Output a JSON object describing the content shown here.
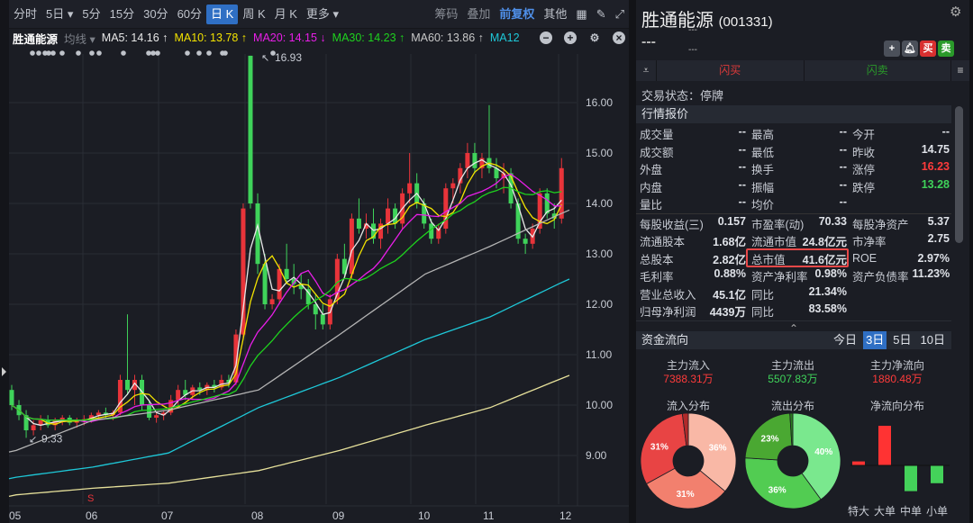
{
  "toolbar": {
    "periods": [
      "分时",
      "5日",
      "5分",
      "15分",
      "30分",
      "60分",
      "日 K",
      "周 K",
      "月 K",
      "更多"
    ],
    "active": "日 K",
    "right": [
      "筹码",
      "叠加",
      "前复权",
      "其他"
    ]
  },
  "ma_bar": {
    "stock": "胜通能源",
    "type": "均线",
    "ma5": "MA5: 14.16 ↑",
    "ma10": "MA10: 13.78 ↑",
    "ma20": "MA20: 14.15 ↓",
    "ma30": "MA30: 14.23 ↑",
    "ma60": "MA60: 13.86 ↑",
    "ma120": "MA12"
  },
  "colors": {
    "up": "#e8343a",
    "down": "#3fd35a",
    "ma5": "#e8e8e8",
    "ma10": "#f2e200",
    "ma20": "#e81ee8",
    "ma30": "#1ed21e",
    "ma60": "#b4b4b4",
    "ma120": "#1ec8d8",
    "ma250": "#e6e09a"
  },
  "chart_data": {
    "type": "candlestick",
    "x_ticks": [
      "05",
      "06",
      "07",
      "08",
      "09",
      "10",
      "11",
      "12"
    ],
    "y_ticks": [
      "16.00",
      "15.00",
      "14.00",
      "13.00",
      "12.00",
      "11.00",
      "10.00",
      "9.00"
    ],
    "ylim": [
      8.0,
      17.0
    ],
    "high_label": "16.93",
    "low_label": "9.33",
    "marker": "S",
    "candles": [
      [
        10.3,
        10.4,
        9.9,
        10.0
      ],
      [
        10.0,
        10.1,
        9.7,
        9.8
      ],
      [
        9.8,
        9.9,
        9.35,
        9.5
      ],
      [
        9.5,
        9.7,
        9.4,
        9.6
      ],
      [
        9.6,
        9.8,
        9.5,
        9.7
      ],
      [
        9.7,
        9.8,
        9.55,
        9.6
      ],
      [
        9.6,
        9.75,
        9.5,
        9.7
      ],
      [
        9.7,
        9.8,
        9.6,
        9.75
      ],
      [
        9.75,
        9.8,
        9.6,
        9.65
      ],
      [
        9.65,
        9.75,
        9.55,
        9.7
      ],
      [
        9.7,
        9.8,
        9.6,
        9.72
      ],
      [
        9.72,
        9.85,
        9.65,
        9.8
      ],
      [
        9.8,
        9.9,
        9.7,
        9.85
      ],
      [
        9.85,
        9.95,
        9.75,
        9.8
      ],
      [
        9.8,
        9.9,
        9.7,
        9.85
      ],
      [
        9.85,
        10.6,
        9.8,
        10.5
      ],
      [
        10.5,
        11.8,
        10.2,
        10.3
      ],
      [
        10.3,
        10.6,
        10.0,
        10.5
      ],
      [
        10.5,
        10.6,
        9.9,
        10.0
      ],
      [
        10.0,
        10.1,
        9.7,
        9.75
      ],
      [
        9.75,
        9.85,
        9.65,
        9.8
      ],
      [
        9.8,
        9.9,
        9.7,
        9.85
      ],
      [
        9.85,
        10.2,
        9.8,
        10.1
      ],
      [
        10.1,
        10.4,
        10.0,
        10.3
      ],
      [
        10.3,
        10.5,
        10.1,
        10.2
      ],
      [
        10.2,
        10.4,
        10.1,
        10.35
      ],
      [
        10.35,
        10.45,
        10.2,
        10.3
      ],
      [
        10.3,
        10.45,
        10.2,
        10.4
      ],
      [
        10.4,
        10.5,
        10.25,
        10.35
      ],
      [
        10.35,
        10.6,
        10.3,
        10.5
      ],
      [
        10.5,
        10.6,
        10.35,
        10.45
      ],
      [
        10.45,
        11.5,
        10.4,
        11.4
      ],
      [
        11.4,
        14.0,
        11.3,
        13.9
      ],
      [
        16.93,
        16.93,
        13.9,
        14.0
      ],
      [
        14.0,
        14.2,
        12.6,
        12.8
      ],
      [
        12.8,
        13.0,
        11.9,
        12.0
      ],
      [
        12.0,
        12.2,
        11.9,
        12.1
      ],
      [
        12.1,
        12.8,
        12.0,
        12.7
      ],
      [
        12.7,
        13.2,
        12.4,
        12.5
      ],
      [
        12.5,
        12.8,
        12.2,
        12.4
      ],
      [
        12.4,
        12.6,
        12.1,
        12.3
      ],
      [
        12.3,
        12.5,
        11.9,
        12.0
      ],
      [
        12.0,
        12.2,
        11.5,
        11.8
      ],
      [
        11.8,
        12.0,
        11.5,
        11.6
      ],
      [
        11.6,
        12.2,
        11.5,
        12.1
      ],
      [
        12.1,
        13.0,
        12.0,
        12.9
      ],
      [
        12.9,
        13.2,
        12.5,
        12.6
      ],
      [
        12.6,
        13.8,
        12.5,
        13.7
      ],
      [
        13.7,
        14.1,
        13.4,
        13.5
      ],
      [
        13.5,
        13.8,
        13.3,
        13.6
      ],
      [
        13.6,
        13.9,
        13.2,
        13.3
      ],
      [
        13.3,
        13.7,
        13.1,
        13.6
      ],
      [
        13.6,
        14.1,
        13.4,
        13.9
      ],
      [
        13.9,
        14.0,
        13.5,
        13.6
      ],
      [
        13.6,
        14.3,
        13.5,
        14.2
      ],
      [
        14.2,
        15.0,
        14.0,
        14.4
      ],
      [
        14.4,
        14.6,
        13.9,
        14.0
      ],
      [
        14.0,
        14.1,
        13.5,
        13.6
      ],
      [
        13.6,
        13.7,
        13.2,
        13.3
      ],
      [
        13.3,
        13.6,
        13.2,
        13.5
      ],
      [
        13.5,
        14.4,
        13.4,
        14.3
      ],
      [
        14.3,
        14.5,
        14.0,
        14.4
      ],
      [
        14.4,
        14.8,
        14.2,
        14.7
      ],
      [
        14.7,
        15.2,
        14.5,
        15.0
      ],
      [
        15.0,
        15.2,
        14.6,
        14.7
      ],
      [
        14.7,
        15.0,
        14.5,
        14.9
      ],
      [
        14.9,
        15.95,
        14.6,
        14.7
      ],
      [
        14.7,
        14.9,
        14.3,
        14.5
      ],
      [
        14.5,
        14.8,
        14.2,
        14.6
      ],
      [
        14.6,
        14.7,
        13.9,
        14.0
      ],
      [
        14.0,
        14.1,
        13.2,
        13.3
      ],
      [
        13.3,
        13.4,
        13.0,
        13.2
      ],
      [
        13.2,
        13.6,
        13.1,
        13.5
      ],
      [
        13.5,
        14.3,
        13.4,
        14.2
      ],
      [
        14.2,
        14.3,
        13.7,
        13.8
      ],
      [
        13.8,
        14.0,
        13.5,
        13.7
      ],
      [
        13.7,
        14.9,
        13.6,
        14.7
      ]
    ],
    "long_ma_at_ticks": {
      "ma60": [
        9.1,
        9.7,
        9.9,
        10.3,
        11.4,
        12.6,
        13.15,
        13.85
      ],
      "ma120": [
        8.57,
        8.77,
        9.05,
        9.95,
        10.55,
        11.3,
        11.75,
        12.48
      ],
      "ma250": [
        8.22,
        8.35,
        8.45,
        8.7,
        9.1,
        9.6,
        9.95,
        10.57
      ]
    }
  },
  "stock": {
    "name": "胜通能源",
    "code": "(001331)",
    "price": "---",
    "change": "---",
    "pct": "---"
  },
  "actions": {
    "flash_buy": "闪买",
    "flash_sell": "闪卖",
    "buy": "买",
    "sell": "卖"
  },
  "status": "交易状态：停牌",
  "quote": {
    "title": "行情报价",
    "rows": [
      [
        [
          "成交量",
          "--"
        ],
        [
          "最高",
          "--"
        ],
        [
          "今开",
          "--"
        ]
      ],
      [
        [
          "成交额",
          "--"
        ],
        [
          "最低",
          "--"
        ],
        [
          "昨收",
          "14.75"
        ]
      ],
      [
        [
          "外盘",
          "--"
        ],
        [
          "换手",
          "--"
        ],
        [
          "涨停",
          "16.23"
        ]
      ],
      [
        [
          "内盘",
          "--"
        ],
        [
          "振幅",
          "--"
        ],
        [
          "跌停",
          "13.28"
        ]
      ],
      [
        [
          "量比",
          "--"
        ],
        [
          "均价",
          "--"
        ],
        [
          "",
          ""
        ]
      ]
    ]
  },
  "fin": {
    "rows": [
      [
        [
          "每股收益(三)",
          "0.157"
        ],
        [
          "市盈率(动)",
          "70.33"
        ],
        [
          "每股净资产",
          "5.37"
        ]
      ],
      [
        [
          "流通股本",
          "1.68亿"
        ],
        [
          "流通市值",
          "24.8亿元"
        ],
        [
          "市净率",
          "2.75"
        ]
      ],
      [
        [
          "总股本",
          "2.82亿"
        ],
        [
          "总市值",
          "41.6亿元"
        ],
        [
          "ROE",
          "2.97%"
        ]
      ],
      [
        [
          "毛利率",
          "0.88%"
        ],
        [
          "资产净利率",
          "0.98%"
        ],
        [
          "资产负债率",
          "11.23%"
        ]
      ],
      [
        [
          "营业总收入",
          "45.1亿"
        ],
        [
          "同比",
          "21.34%"
        ],
        [
          "",
          ""
        ]
      ],
      [
        [
          "归母净利润",
          "4439万"
        ],
        [
          "同比",
          "83.58%"
        ],
        [
          "",
          ""
        ]
      ]
    ]
  },
  "flow": {
    "title": "资金流向",
    "tabs": [
      "今日",
      "3日",
      "5日",
      "10日"
    ],
    "active_tab": "3日",
    "inflow_label": "主力流入",
    "inflow": "7388.31万",
    "outflow_label": "主力流出",
    "outflow": "5507.83万",
    "net_label": "主力净流向",
    "net": "1880.48万",
    "in_dist": "流入分布",
    "out_dist": "流出分布",
    "net_dist": "净流向分布",
    "in_slices": [
      {
        "pct": 36,
        "label": "36%",
        "color": "#f9b8a6"
      },
      {
        "pct": 31,
        "label": "31%",
        "color": "#f2806e"
      },
      {
        "pct": 31,
        "label": "31%",
        "color": "#e84444"
      },
      {
        "pct": 2,
        "label": "",
        "color": "#b02a2a"
      }
    ],
    "out_slices": [
      {
        "pct": 40,
        "label": "40%",
        "color": "#7ae88e"
      },
      {
        "pct": 36,
        "label": "36%",
        "color": "#52cc52"
      },
      {
        "pct": 23,
        "label": "23%",
        "color": "#4aa832"
      },
      {
        "pct": 1,
        "label": "",
        "color": "#2a7a20"
      }
    ],
    "net_bars": [
      {
        "label": "特大",
        "level": 0.1
      },
      {
        "label": "大单",
        "level": 1.0
      },
      {
        "label": "中单",
        "level": -0.65
      },
      {
        "label": "小单",
        "level": -0.45
      }
    ]
  }
}
